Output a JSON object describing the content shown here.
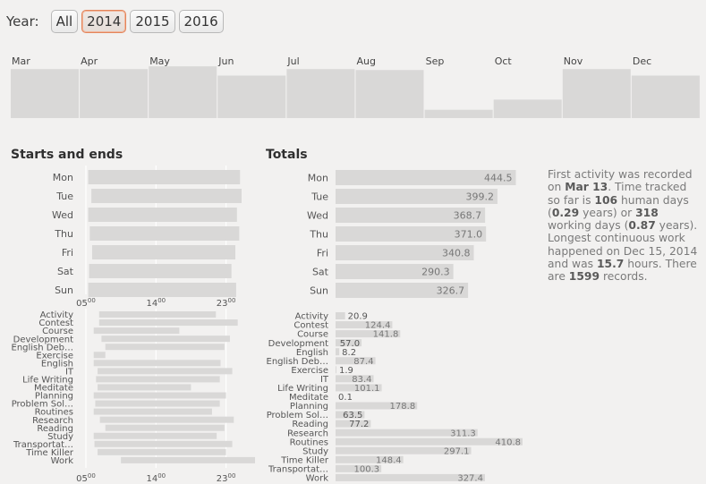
{
  "year_selector": {
    "label": "Year:",
    "options": [
      "All",
      "2014",
      "2015",
      "2016"
    ],
    "selected": "2014"
  },
  "colors": {
    "bar": "#d9d8d7",
    "bar_dark": "#c9c8c7",
    "accent": "#e3855c"
  },
  "starts_title": "Starts and ends",
  "totals_title": "Totals",
  "summary": {
    "t1": "First activity was recorded on ",
    "first_date": "Mar 13",
    "t2": ". Time tracked so far is ",
    "human_days": "106",
    "t3": " human days (",
    "human_years": "0.29",
    "t4": " years) or ",
    "working_days": "318",
    "t5": " working days (",
    "working_years": "0.87",
    "t6": " years).",
    "t7": "Longest continuous work happened on Dec 15, 2014 and was ",
    "longest_hours": "15.7",
    "t8": " hours. There are ",
    "records": "1599",
    "t9": " records."
  },
  "chart_data": [
    {
      "type": "bar",
      "id": "monthly",
      "categories": [
        "Mar",
        "Apr",
        "May",
        "Jun",
        "Jul",
        "Aug",
        "Sep",
        "Oct",
        "Nov",
        "Dec"
      ],
      "values": [
        53,
        53,
        56,
        46,
        53,
        52,
        9,
        20,
        53,
        46
      ],
      "ylim": [
        0,
        60
      ]
    },
    {
      "type": "bar",
      "id": "weekday_ranges",
      "orientation": "horizontal-range",
      "categories": [
        "Mon",
        "Tue",
        "Wed",
        "Thu",
        "Fri",
        "Sat",
        "Sun"
      ],
      "ranges": [
        [
          5.3,
          24.8
        ],
        [
          5.7,
          25.0
        ],
        [
          5.3,
          24.4
        ],
        [
          5.5,
          24.7
        ],
        [
          5.8,
          24.2
        ],
        [
          5.4,
          23.7
        ],
        [
          5.3,
          24.3
        ]
      ],
      "xticks": [
        "05",
        "14",
        "23"
      ],
      "tick_values": [
        5,
        14,
        23
      ],
      "tick_suffix": "00",
      "xlim": [
        5,
        25
      ]
    },
    {
      "type": "bar",
      "id": "activity_ranges",
      "orientation": "horizontal-range",
      "categories": [
        "Activity",
        "Contest",
        "Course",
        "Development",
        "English Deb…",
        "Exercise",
        "English",
        "IT",
        "Life Writing",
        "Meditate",
        "Planning",
        "Problem Sol…",
        "Routines",
        "Research",
        "Reading",
        "Study",
        "Transportat…",
        "Time Killer",
        "Work"
      ],
      "ranges": [
        [
          6.7,
          21.7
        ],
        [
          6.7,
          24.5
        ],
        [
          6.0,
          17.0
        ],
        [
          7.0,
          23.5
        ],
        [
          7.5,
          22.8
        ],
        [
          6.0,
          7.5
        ],
        [
          6.0,
          22.3
        ],
        [
          6.5,
          23.8
        ],
        [
          6.3,
          22.2
        ],
        [
          6.5,
          18.5
        ],
        [
          6.0,
          23.0
        ],
        [
          6.2,
          22.2
        ],
        [
          6.0,
          21.2
        ],
        [
          6.8,
          24.0
        ],
        [
          7.5,
          22.8
        ],
        [
          6.0,
          21.8
        ],
        [
          6.1,
          23.8
        ],
        [
          6.5,
          23.0
        ],
        [
          9.5,
          28.8
        ]
      ],
      "xticks": [
        "05",
        "14",
        "23"
      ],
      "tick_values": [
        5,
        14,
        23
      ],
      "tick_suffix": "00",
      "xlim": [
        5,
        25
      ]
    },
    {
      "type": "bar",
      "id": "weekday_totals",
      "orientation": "horizontal",
      "categories": [
        "Mon",
        "Tue",
        "Wed",
        "Thu",
        "Fri",
        "Sat",
        "Sun"
      ],
      "values": [
        444.5,
        399.2,
        368.7,
        371.0,
        340.8,
        290.3,
        326.7
      ],
      "labels": [
        "444.5",
        "399.2",
        "368.7",
        "371.0",
        "340.8",
        "290.3",
        "326.7"
      ],
      "xlim": [
        0,
        450
      ]
    },
    {
      "type": "bar",
      "id": "activity_totals",
      "orientation": "horizontal",
      "categories": [
        "Activity",
        "Contest",
        "Course",
        "Development",
        "English",
        "English Deb…",
        "Exercise",
        "IT",
        "Life Writing",
        "Meditate",
        "Planning",
        "Problem Sol…",
        "Reading",
        "Research",
        "Routines",
        "Study",
        "Time Killer",
        "Transportat…",
        "Work"
      ],
      "values": [
        20.9,
        124.4,
        141.8,
        57.0,
        8.2,
        87.4,
        1.9,
        83.4,
        101.1,
        0.1,
        178.8,
        63.5,
        77.2,
        311.3,
        410.8,
        297.1,
        148.4,
        100.3,
        327.4
      ],
      "labels": [
        "20.9",
        "124.4",
        "141.8",
        "57.0",
        "8.2",
        "87.4",
        "1.9",
        "83.4",
        "101.1",
        "0.1",
        "178.8",
        "63.5",
        "77.2",
        "311.3",
        "410.8",
        "297.1",
        "148.4",
        "100.3",
        "327.4"
      ],
      "xlim": [
        0,
        400
      ]
    }
  ]
}
